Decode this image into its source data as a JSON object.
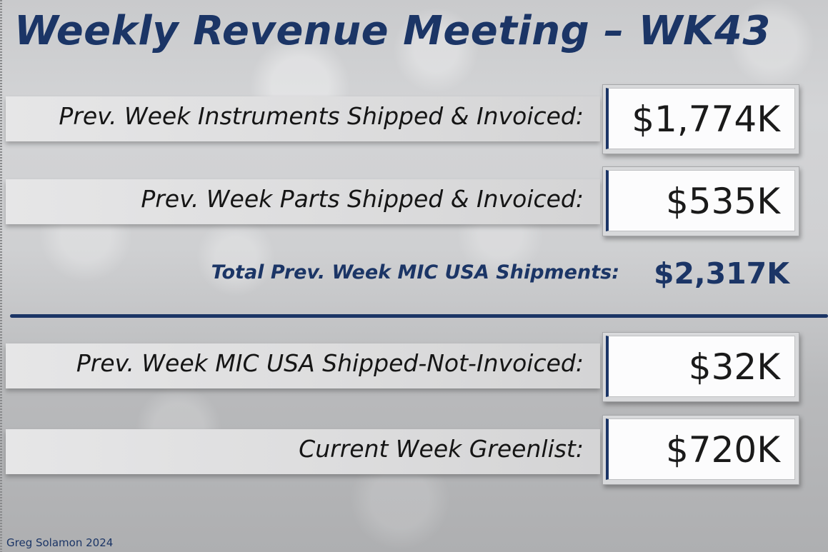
{
  "title": "Weekly Revenue Meeting – WK43",
  "rows": [
    {
      "label": "Prev. Week Instruments Shipped & Invoiced:",
      "value": "$1,774K"
    },
    {
      "label": "Prev. Week Parts Shipped & Invoiced:",
      "value": "$535K"
    },
    {
      "label": "Prev. Week MIC USA Shipped-Not-Invoiced:",
      "value": "$32K"
    },
    {
      "label": "Current Week Greenlist:",
      "value": "$720K"
    }
  ],
  "total": {
    "label": "Total Prev. Week MIC USA Shipments:",
    "value": "$2,317K"
  },
  "footer": "Greg Solamon 2024",
  "colors": {
    "accent": "#1b3566",
    "background": "#c9cacc",
    "band": "#e0e0e1",
    "value_box": "#fcfcfd"
  }
}
